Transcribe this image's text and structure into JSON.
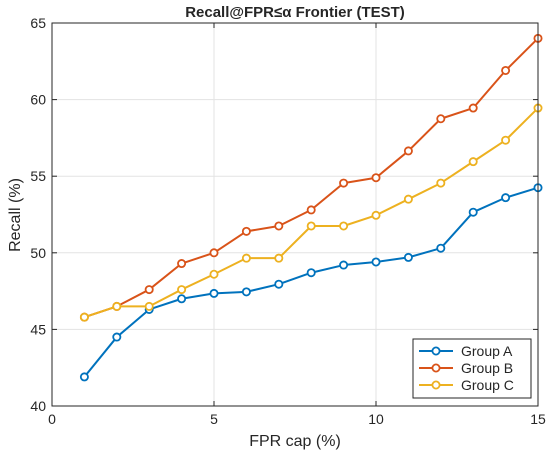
{
  "chart_data": {
    "type": "line",
    "title": "Recall@FPR≤α Frontier (TEST)",
    "xlabel": "FPR cap (%)",
    "ylabel": "Recall (%)",
    "xlim": [
      0,
      15
    ],
    "ylim": [
      40,
      65
    ],
    "xticks": [
      0,
      5,
      10,
      15
    ],
    "yticks": [
      40,
      45,
      50,
      55,
      60,
      65
    ],
    "x": [
      1,
      2,
      3,
      4,
      5,
      6,
      7,
      8,
      9,
      10,
      11,
      12,
      13,
      14,
      15
    ],
    "grid": true,
    "legend_position": "bottom-right",
    "series": [
      {
        "name": "Group A",
        "color": "#0072BD",
        "values": [
          41.9,
          44.5,
          46.3,
          47.0,
          47.35,
          47.45,
          47.95,
          48.7,
          49.2,
          49.4,
          49.7,
          50.3,
          52.65,
          53.6,
          54.25
        ]
      },
      {
        "name": "Group B",
        "color": "#D95319",
        "values": [
          45.8,
          46.5,
          47.6,
          49.3,
          50.0,
          51.4,
          51.75,
          52.8,
          54.55,
          54.9,
          56.65,
          58.75,
          59.45,
          61.9,
          64.0
        ]
      },
      {
        "name": "Group C",
        "color": "#EDB120",
        "values": [
          45.8,
          46.5,
          46.5,
          47.6,
          48.6,
          49.65,
          49.65,
          51.75,
          51.75,
          52.45,
          53.5,
          54.55,
          55.95,
          57.35,
          59.45
        ]
      }
    ]
  }
}
